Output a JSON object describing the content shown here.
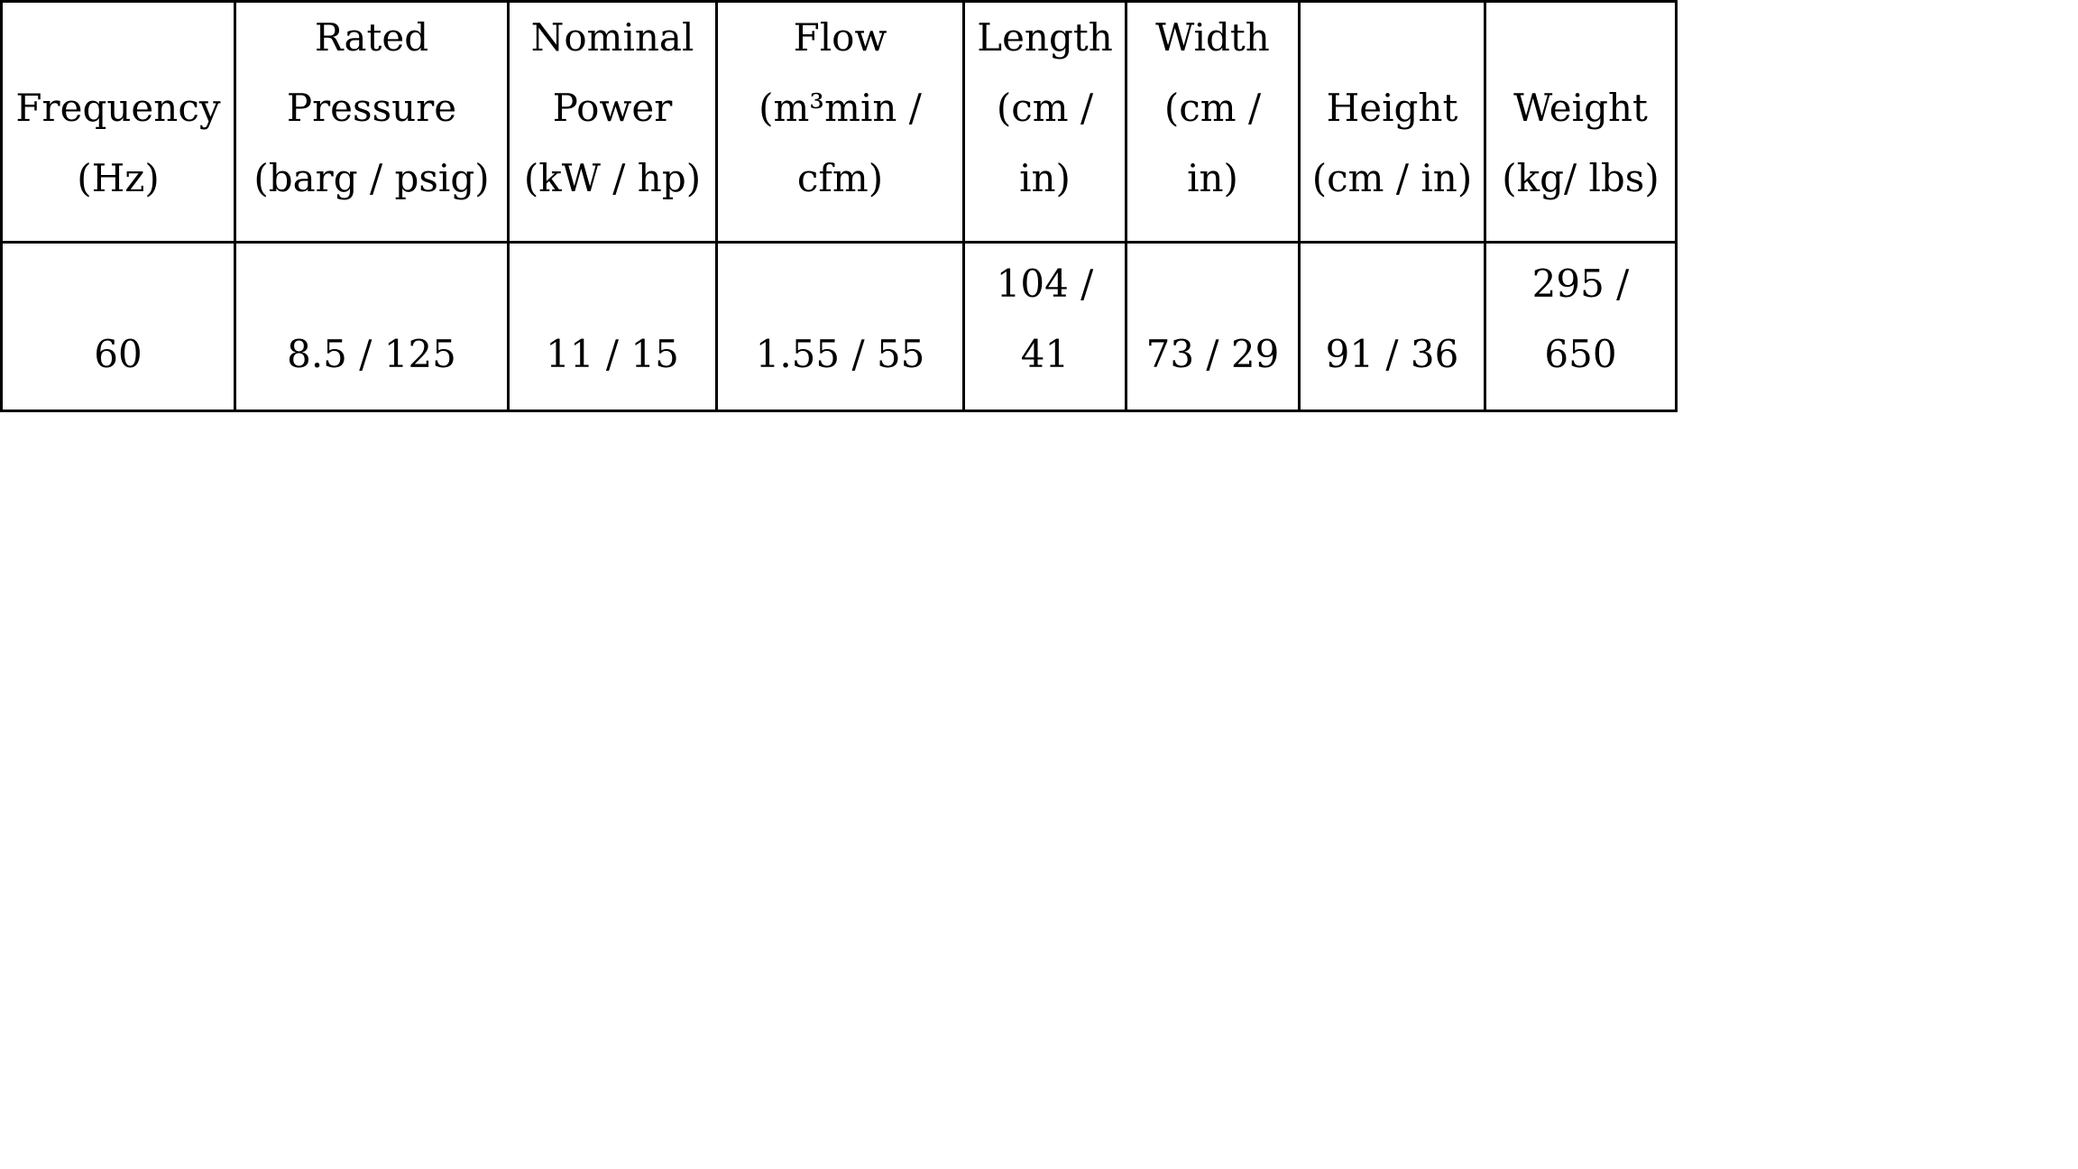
{
  "table": {
    "headers": [
      [
        "Frequency",
        "(Hz)"
      ],
      [
        "Rated",
        "Pressure",
        "(barg / psig)"
      ],
      [
        "Nominal",
        "Power",
        "(kW / hp)"
      ],
      [
        "Flow",
        "(m³min /",
        "cfm)"
      ],
      [
        "Length",
        "(cm /",
        "in)"
      ],
      [
        "Width",
        "(cm / in)"
      ],
      [
        "Height",
        "(cm / in)"
      ],
      [
        "Weight",
        "(kg/ lbs)"
      ]
    ],
    "rows": [
      [
        [
          "60"
        ],
        [
          "8.5 / 125"
        ],
        [
          "11 / 15"
        ],
        [
          "1.55 / 55"
        ],
        [
          "104 /",
          "41"
        ],
        [
          "73 / 29"
        ],
        [
          "91 / 36"
        ],
        [
          "295 /",
          "650"
        ]
      ]
    ]
  }
}
